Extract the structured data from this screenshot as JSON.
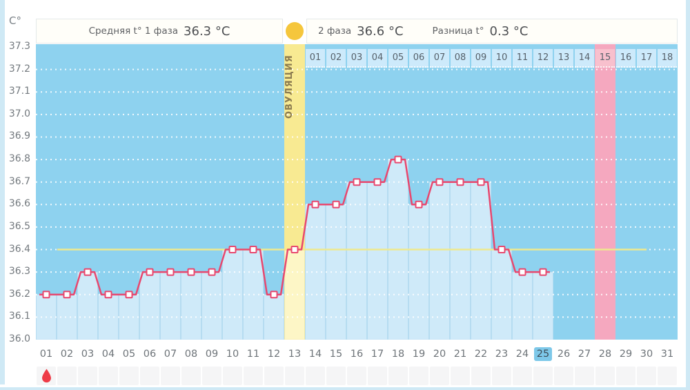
{
  "unit": "C°",
  "header": {
    "phase1_label": "Средняя t° 1 фаза",
    "phase1_value": "36.3 °C",
    "phase2_label": "2 фаза",
    "phase2_value": "36.6 °C",
    "diff_label": "Разница t°",
    "diff_value": "0.3 °C"
  },
  "ovulation_label": "ОВУЛЯЦИЯ",
  "chart_data": {
    "type": "line",
    "title": "Basal body temperature cycle chart",
    "ylabel": "C°",
    "ylim": [
      36.0,
      37.3
    ],
    "y_ticks": [
      "37.3",
      "37.2",
      "37.1",
      "37.0",
      "36.9",
      "36.8",
      "36.7",
      "36.6",
      "36.5",
      "36.4",
      "36.3",
      "36.2",
      "36.1",
      "36.0"
    ],
    "x_labels": [
      "01",
      "02",
      "03",
      "04",
      "05",
      "06",
      "07",
      "08",
      "09",
      "10",
      "11",
      "12",
      "13",
      "14",
      "15",
      "16",
      "17",
      "18",
      "19",
      "20",
      "21",
      "22",
      "23",
      "24",
      "25",
      "26",
      "27",
      "28",
      "29",
      "30",
      "31"
    ],
    "values": [
      36.2,
      36.2,
      36.3,
      36.2,
      36.2,
      36.3,
      36.3,
      36.3,
      36.3,
      36.4,
      36.4,
      36.2,
      36.4,
      36.6,
      36.6,
      36.7,
      36.7,
      36.8,
      36.6,
      36.7,
      36.7,
      36.7,
      36.4,
      36.3,
      36.3,
      null,
      null,
      null,
      null,
      null,
      null
    ],
    "coverline": 36.4,
    "ovulation_day": 13,
    "expected_period_day": 28,
    "selected_day": 25,
    "menstruation_days": [
      1
    ],
    "phase2_day_labels": [
      "01",
      "02",
      "03",
      "04",
      "05",
      "06",
      "07",
      "08",
      "09",
      "10",
      "11",
      "12",
      "13",
      "14",
      "15",
      "16",
      "17",
      "18"
    ],
    "phase2_period_label": "15",
    "grid": "horizontal-dotted-white",
    "legend": "none"
  },
  "colors": {
    "chart_bg": "#8ed2ef",
    "fill_column": "#cfeaf9",
    "fill_column_border": "#b7ddf0",
    "ovulation_fill_column": "#fdf6c6",
    "line": "#e8476e",
    "marker_fill": "#ffffff",
    "coverline": "#efe98e",
    "ovulation_band": "#f8ea92",
    "period_band": "#f5a8bf",
    "period_cell": "#f8c0cd",
    "phase2_cell": "#cdeafb",
    "selected_day_bg": "#7dc8e9",
    "ovulation_circle": "#f5c63c",
    "menstruation_drop": "#ee3b47"
  }
}
